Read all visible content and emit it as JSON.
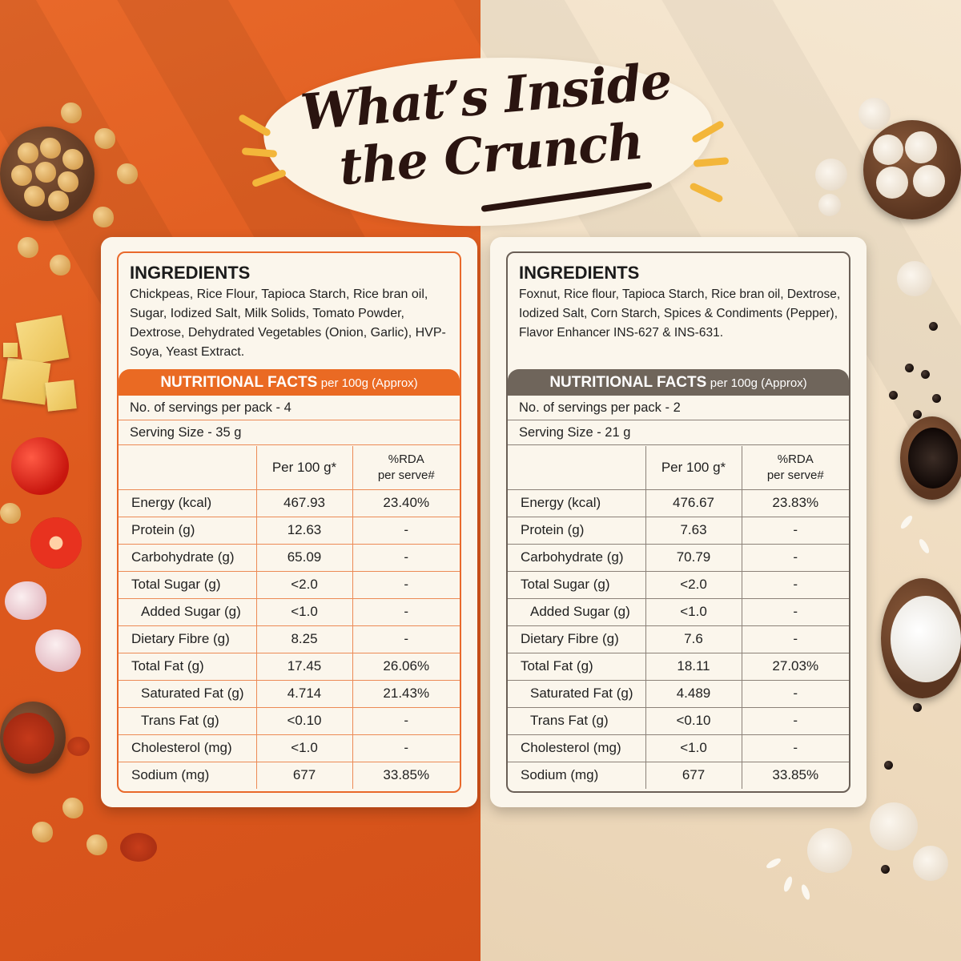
{
  "title": {
    "line1": "What’s Inside",
    "line2": "the Crunch"
  },
  "cards": [
    {
      "ingredients_title": "INGREDIENTS",
      "ingredients_text": "Chickpeas, Rice Flour, Tapioca Starch, Rice bran oil, Sugar, Iodized Salt, Milk Solids, Tomato Powder, Dextrose, Dehydrated Vegetables (Onion, Garlic), HVP-Soya, Yeast Extract.",
      "nutrition_title": "NUTRITIONAL FACTS",
      "nutrition_subtitle": "per 100g (Approx)",
      "servings": "No. of servings per pack - 4",
      "serving_size": "Serving Size - 35 g",
      "col_per100": "Per 100 g*",
      "col_rda_line1": "%RDA",
      "col_rda_line2": "per serve#",
      "rows": [
        {
          "name": "Energy (kcal)",
          "per100": "467.93",
          "rda": "23.40%"
        },
        {
          "name": "Protein (g)",
          "per100": "12.63",
          "rda": "-"
        },
        {
          "name": "Carbohydrate (g)",
          "per100": "65.09",
          "rda": "-"
        },
        {
          "name": "Total Sugar (g)",
          "per100": "<2.0",
          "rda": "-"
        },
        {
          "name": "Added Sugar (g)",
          "per100": "<1.0",
          "rda": "-"
        },
        {
          "name": "Dietary Fibre (g)",
          "per100": "8.25",
          "rda": "-"
        },
        {
          "name": "Total Fat (g)",
          "per100": "17.45",
          "rda": "26.06%"
        },
        {
          "name": "Saturated Fat (g)",
          "per100": "4.714",
          "rda": "21.43%"
        },
        {
          "name": "Trans Fat (g)",
          "per100": "<0.10",
          "rda": "-"
        },
        {
          "name": "Cholesterol (mg)",
          "per100": "<1.0",
          "rda": "-"
        },
        {
          "name": "Sodium (mg)",
          "per100": "677",
          "rda": "33.85%"
        }
      ]
    },
    {
      "ingredients_title": "INGREDIENTS",
      "ingredients_text": "Foxnut, Rice flour, Tapioca Starch, Rice bran oil, Dextrose, Iodized Salt, Corn Starch, Spices & Condiments (Pepper), Flavor Enhancer INS-627 & INS-631.",
      "nutrition_title": "NUTRITIONAL FACTS",
      "nutrition_subtitle": "per 100g (Approx)",
      "servings": "No. of servings per pack - 2",
      "serving_size": "Serving Size - 21 g",
      "col_per100": "Per 100 g*",
      "col_rda_line1": "%RDA",
      "col_rda_line2": "per serve#",
      "rows": [
        {
          "name": "Energy (kcal)",
          "per100": "476.67",
          "rda": "23.83%"
        },
        {
          "name": "Protein (g)",
          "per100": "7.63",
          "rda": "-"
        },
        {
          "name": "Carbohydrate (g)",
          "per100": "70.79",
          "rda": "-"
        },
        {
          "name": "Total Sugar (g)",
          "per100": "<2.0",
          "rda": "-"
        },
        {
          "name": "Added Sugar (g)",
          "per100": "<1.0",
          "rda": "-"
        },
        {
          "name": "Dietary Fibre (g)",
          "per100": "7.6",
          "rda": "-"
        },
        {
          "name": "Total Fat (g)",
          "per100": "18.11",
          "rda": "27.03%"
        },
        {
          "name": "Saturated Fat (g)",
          "per100": "4.489",
          "rda": "-"
        },
        {
          "name": "Trans Fat (g)",
          "per100": "<0.10",
          "rda": "-"
        },
        {
          "name": "Cholesterol (mg)",
          "per100": "<1.0",
          "rda": "-"
        },
        {
          "name": "Sodium (mg)",
          "per100": "677",
          "rda": "33.85%"
        }
      ]
    }
  ],
  "colors": {
    "left_background": "#de5a1e",
    "right_background": "#efdcc0",
    "left_accent": "#ea6a23",
    "right_accent": "#6f655b",
    "title_text": "#2a1410",
    "title_rays": "#f3b63a"
  }
}
